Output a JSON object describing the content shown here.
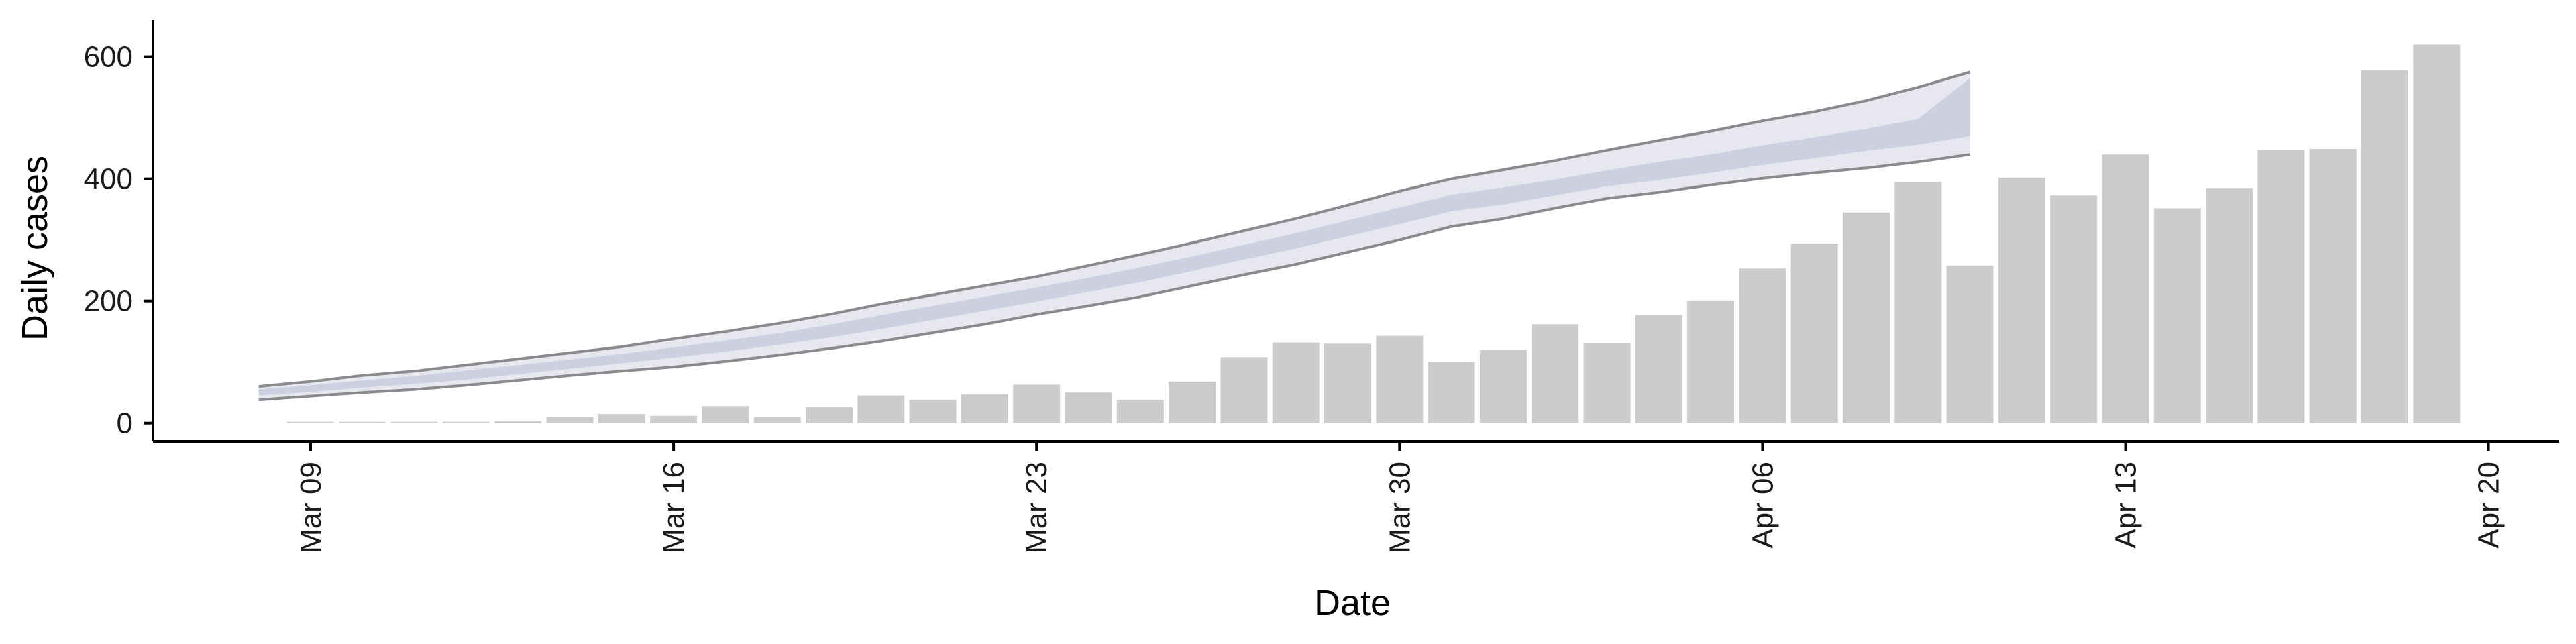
{
  "chart_data": {
    "type": "bar",
    "title": "",
    "xlabel": "Date",
    "ylabel": "Daily cases",
    "ylim": [
      -30,
      660
    ],
    "x_ticks": [
      "Mar 09",
      "Mar 16",
      "Mar 23",
      "Mar 30",
      "Apr 06",
      "Apr 13",
      "Apr 20"
    ],
    "y_ticks": [
      0,
      200,
      400,
      600
    ],
    "grid": false,
    "series": [
      {
        "type": "bar",
        "dates": [
          "2020-03-09",
          "2020-03-10",
          "2020-03-11",
          "2020-03-12",
          "2020-03-13",
          "2020-03-14",
          "2020-03-15",
          "2020-03-16",
          "2020-03-17",
          "2020-03-18",
          "2020-03-19",
          "2020-03-20",
          "2020-03-21",
          "2020-03-22",
          "2020-03-23",
          "2020-03-24",
          "2020-03-25",
          "2020-03-26",
          "2020-03-27",
          "2020-03-28",
          "2020-03-29",
          "2020-03-30",
          "2020-03-31",
          "2020-04-01",
          "2020-04-02",
          "2020-04-03",
          "2020-04-04",
          "2020-04-05",
          "2020-04-06",
          "2020-04-07",
          "2020-04-08",
          "2020-04-09",
          "2020-04-10",
          "2020-04-11",
          "2020-04-12",
          "2020-04-13",
          "2020-04-14",
          "2020-04-15",
          "2020-04-16",
          "2020-04-17",
          "2020-04-18",
          "2020-04-19"
        ],
        "values": [
          1,
          0,
          0,
          2,
          3,
          10,
          15,
          12,
          28,
          10,
          26,
          45,
          38,
          47,
          63,
          50,
          38,
          68,
          108,
          132,
          130,
          143,
          100,
          120,
          162,
          131,
          177,
          201,
          253,
          294,
          345,
          395,
          258,
          402,
          373,
          440,
          352,
          385,
          447,
          449,
          578,
          620
        ]
      },
      {
        "type": "forecast-band",
        "dates": [
          "2020-03-08",
          "2020-03-09",
          "2020-03-10",
          "2020-03-11",
          "2020-03-12",
          "2020-03-13",
          "2020-03-14",
          "2020-03-15",
          "2020-03-16",
          "2020-03-17",
          "2020-03-18",
          "2020-03-19",
          "2020-03-20",
          "2020-03-21",
          "2020-03-22",
          "2020-03-23",
          "2020-03-24",
          "2020-03-25",
          "2020-03-26",
          "2020-03-27",
          "2020-03-28",
          "2020-03-29",
          "2020-03-30",
          "2020-03-31",
          "2020-04-01",
          "2020-04-02",
          "2020-04-03",
          "2020-04-04",
          "2020-04-05",
          "2020-04-06",
          "2020-04-07",
          "2020-04-08",
          "2020-04-09",
          "2020-04-10"
        ],
        "upper": [
          60,
          68,
          78,
          85,
          95,
          105,
          115,
          125,
          138,
          150,
          163,
          178,
          195,
          210,
          225,
          240,
          258,
          276,
          295,
          315,
          335,
          357,
          380,
          400,
          415,
          430,
          447,
          463,
          478,
          495,
          510,
          528,
          550,
          575
        ],
        "lower": [
          38,
          44,
          50,
          55,
          62,
          70,
          78,
          85,
          92,
          101,
          111,
          122,
          134,
          148,
          162,
          178,
          192,
          207,
          225,
          243,
          260,
          280,
          300,
          322,
          335,
          352,
          368,
          378,
          390,
          401,
          410,
          418,
          428,
          440
        ],
        "inner_upper": [
          55,
          62,
          70,
          77,
          86,
          95,
          104,
          113,
          124,
          135,
          147,
          161,
          177,
          192,
          207,
          222,
          238,
          255,
          273,
          292,
          311,
          332,
          353,
          374,
          386,
          399,
          414,
          428,
          440,
          455,
          468,
          482,
          498,
          565
        ],
        "inner_lower": [
          45,
          51,
          58,
          64,
          71,
          80,
          89,
          98,
          107,
          117,
          128,
          140,
          154,
          169,
          184,
          199,
          215,
          231,
          249,
          268,
          286,
          306,
          326,
          347,
          358,
          373,
          388,
          398,
          410,
          423,
          434,
          446,
          456,
          470
        ]
      }
    ]
  }
}
